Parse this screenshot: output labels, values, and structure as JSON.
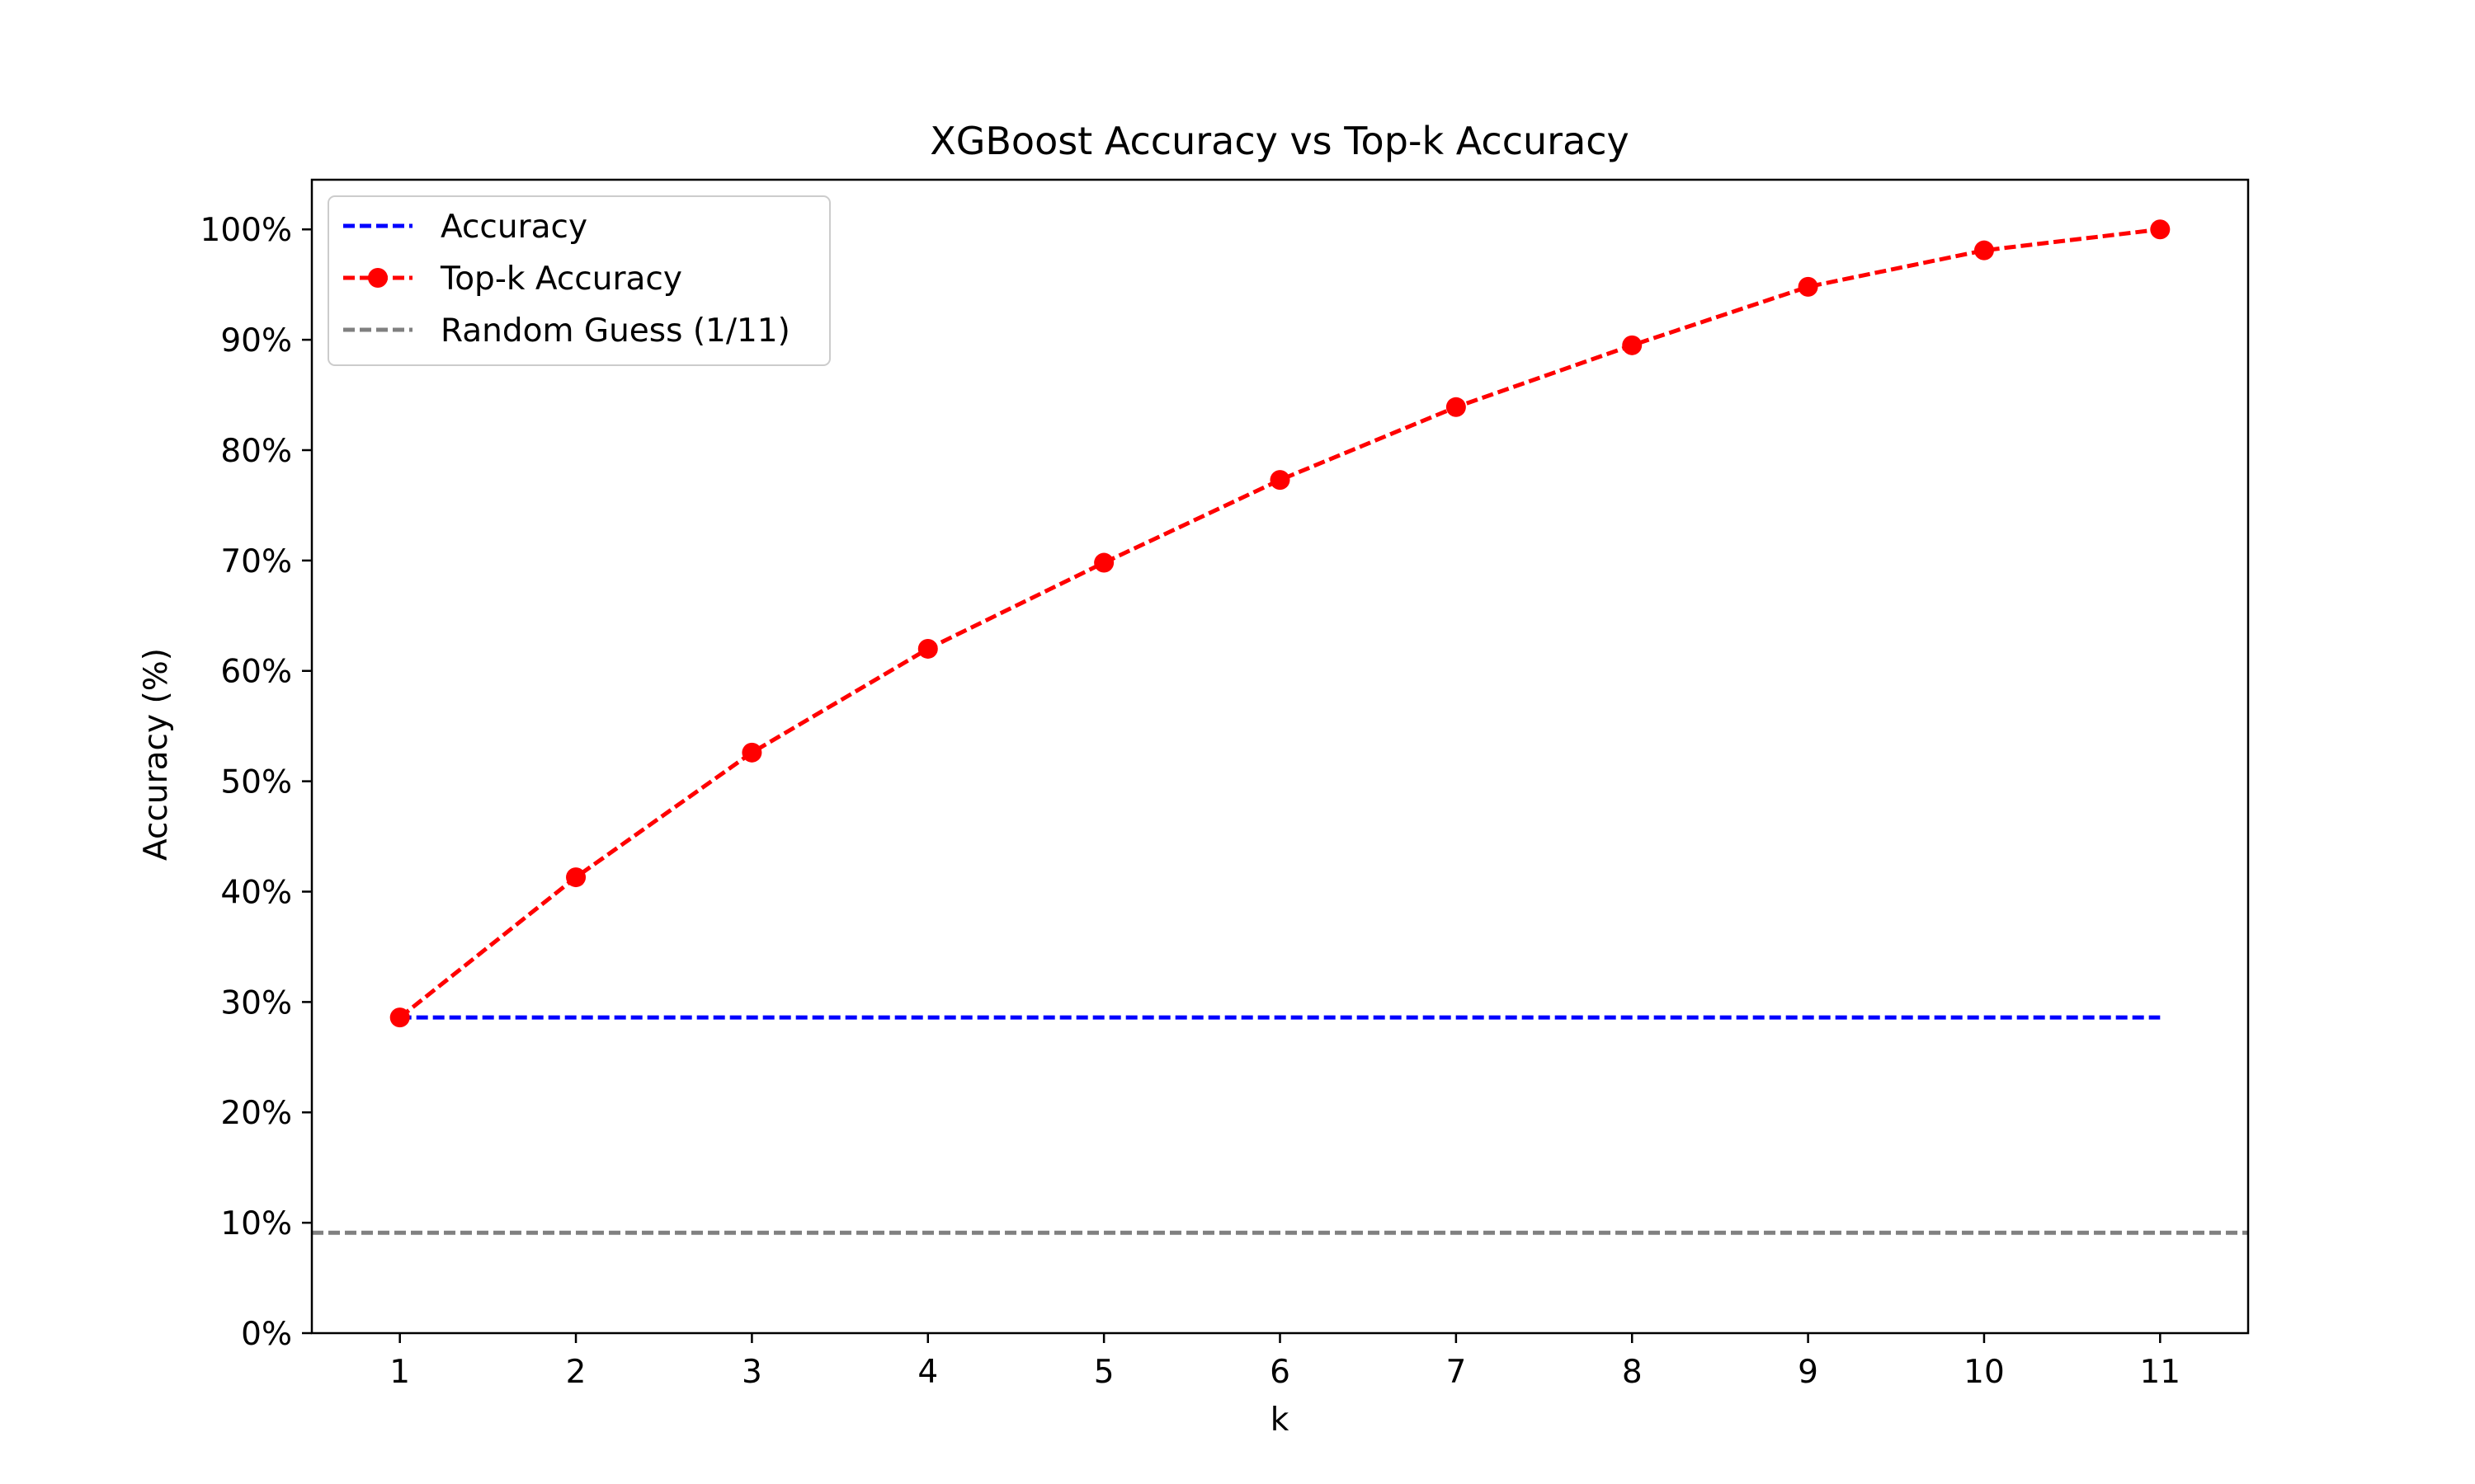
{
  "chart_data": {
    "type": "line",
    "title": "XGBoost Accuracy vs Top-k Accuracy",
    "xlabel": "k",
    "ylabel": "Accuracy (%)",
    "x": [
      1,
      2,
      3,
      4,
      5,
      6,
      7,
      8,
      9,
      10,
      11
    ],
    "x_ticks": [
      "1",
      "2",
      "3",
      "4",
      "5",
      "6",
      "7",
      "8",
      "9",
      "10",
      "11"
    ],
    "y_ticks": [
      "0%",
      "10%",
      "20%",
      "30%",
      "40%",
      "50%",
      "60%",
      "70%",
      "80%",
      "90%",
      "100%"
    ],
    "xlim": [
      0.5,
      11.5
    ],
    "ylim": [
      0,
      1.045
    ],
    "grid": false,
    "legend_position": "top-left",
    "series": [
      {
        "name": "Accuracy",
        "color": "#0000ff",
        "style": "dashed",
        "marker": "none",
        "values": [
          0.286,
          0.286,
          0.286,
          0.286,
          0.286,
          0.286,
          0.286,
          0.286,
          0.286,
          0.286,
          0.286
        ]
      },
      {
        "name": "Top-k Accuracy",
        "color": "#ff0000",
        "style": "dashed",
        "marker": "circle",
        "values": [
          0.286,
          0.413,
          0.526,
          0.62,
          0.698,
          0.773,
          0.839,
          0.895,
          0.948,
          0.981,
          1.0
        ]
      },
      {
        "name": "Random Guess (1/11)",
        "color": "#808080",
        "style": "dashed",
        "marker": "none",
        "type": "hline",
        "value": 0.0909
      }
    ]
  }
}
